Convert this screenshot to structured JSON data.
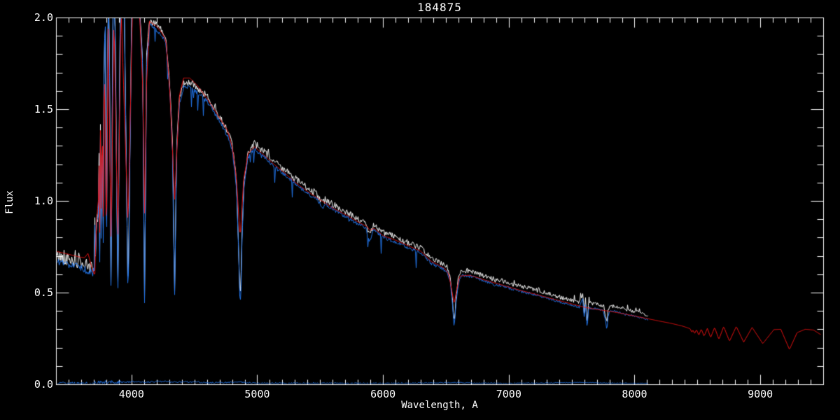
{
  "chart_data": {
    "type": "line",
    "title": "184875",
    "xlabel": "Wavelength, A",
    "ylabel": "Flux",
    "xlim": [
      3400,
      9500
    ],
    "ylim": [
      0,
      2
    ],
    "grid": false,
    "legend": "none",
    "background_color": "#000000",
    "axis_color": "#ffffff",
    "x_axis": {
      "major_ticks": [
        4000,
        5000,
        6000,
        7000,
        8000,
        9000
      ],
      "tick_labels": [
        "4000",
        "5000",
        "6000",
        "7000",
        "8000",
        "9000"
      ],
      "minor_step": 100
    },
    "y_axis": {
      "major_ticks": [
        0,
        0.5,
        1,
        1.5,
        2
      ],
      "tick_labels": [
        "0.0",
        "0.5",
        "1.0",
        "1.5",
        "2.0"
      ],
      "minor_step": 0.1
    },
    "series": [
      {
        "name": "observed-spectrum-white",
        "color": "#ffffff",
        "range": [
          3400,
          8100
        ],
        "anchors_ref": "observed",
        "offset": 0.027,
        "noise": 0.02,
        "style": "white"
      },
      {
        "name": "sky-zero-line-blue",
        "color": "#2277ee",
        "range": [
          3400,
          8100
        ],
        "anchors_ref": "sky",
        "offset": 0,
        "noise": 0.004,
        "style": "plain"
      },
      {
        "name": "observed-spectrum-blue",
        "color": "#2277ee",
        "range": [
          3400,
          8100
        ],
        "anchors_ref": "observed",
        "offset": 0,
        "noise": 0.012,
        "style": "blue"
      },
      {
        "name": "model-spectrum-red",
        "color": "#ee1111",
        "range": [
          3400,
          9475
        ],
        "anchors_ref": "model",
        "offset": 0,
        "noise": 0,
        "style": "plain"
      }
    ],
    "anchor_sets": {
      "observed": [
        [
          3400,
          0.67
        ],
        [
          3450,
          0.665
        ],
        [
          3500,
          0.655
        ],
        [
          3550,
          0.645
        ],
        [
          3600,
          0.635
        ],
        [
          3640,
          0.62
        ],
        [
          3665,
          0.61
        ],
        [
          3685,
          0.605
        ],
        [
          3698,
          0.615
        ],
        [
          3702,
          0.63
        ],
        [
          3706,
          0.88
        ],
        [
          3710,
          0.52
        ],
        [
          3715,
          1.02
        ],
        [
          3720,
          0.55
        ],
        [
          3726,
          1.22
        ],
        [
          3731,
          0.56
        ],
        [
          3738,
          1.42
        ],
        [
          3744,
          0.52
        ],
        [
          3752,
          1.58
        ],
        [
          3758,
          0.5
        ],
        [
          3765,
          1.72
        ],
        [
          3771,
          0.48
        ],
        [
          3780,
          1.85
        ],
        [
          3790,
          1.93
        ],
        [
          3798,
          0.46
        ],
        [
          3808,
          1.97
        ],
        [
          3820,
          2.02
        ],
        [
          3835,
          0.44
        ],
        [
          3850,
          2.03
        ],
        [
          3866,
          2.04
        ],
        [
          3889,
          0.43
        ],
        [
          3908,
          2.05
        ],
        [
          3940,
          2.05
        ],
        [
          3970,
          0.43
        ],
        [
          4000,
          2.05
        ],
        [
          4060,
          2.05
        ],
        [
          4086,
          1.75
        ],
        [
          4101,
          0.43
        ],
        [
          4118,
          1.75
        ],
        [
          4140,
          1.96
        ],
        [
          4200,
          1.93
        ],
        [
          4250,
          1.89
        ],
        [
          4272,
          1.85
        ],
        [
          4302,
          1.6
        ],
        [
          4324,
          1.28
        ],
        [
          4340,
          0.46
        ],
        [
          4357,
          1.28
        ],
        [
          4380,
          1.54
        ],
        [
          4412,
          1.62
        ],
        [
          4470,
          1.62
        ],
        [
          4540,
          1.58
        ],
        [
          4600,
          1.54
        ],
        [
          4650,
          1.49
        ],
        [
          4700,
          1.43
        ],
        [
          4760,
          1.36
        ],
        [
          4800,
          1.27
        ],
        [
          4832,
          1.08
        ],
        [
          4848,
          0.75
        ],
        [
          4861,
          0.4
        ],
        [
          4875,
          0.75
        ],
        [
          4892,
          1.08
        ],
        [
          4925,
          1.24
        ],
        [
          4975,
          1.28
        ],
        [
          5050,
          1.24
        ],
        [
          5130,
          1.19
        ],
        [
          5220,
          1.14
        ],
        [
          5300,
          1.095
        ],
        [
          5400,
          1.04
        ],
        [
          5480,
          1.005
        ],
        [
          5512,
          0.96
        ],
        [
          5540,
          0.985
        ],
        [
          5600,
          0.955
        ],
        [
          5700,
          0.915
        ],
        [
          5800,
          0.875
        ],
        [
          5860,
          0.855
        ],
        [
          5890,
          0.78
        ],
        [
          5920,
          0.845
        ],
        [
          6000,
          0.8
        ],
        [
          6100,
          0.775
        ],
        [
          6200,
          0.745
        ],
        [
          6300,
          0.715
        ],
        [
          6380,
          0.66
        ],
        [
          6440,
          0.64
        ],
        [
          6480,
          0.625
        ],
        [
          6510,
          0.61
        ],
        [
          6532,
          0.56
        ],
        [
          6549,
          0.44
        ],
        [
          6563,
          0.31
        ],
        [
          6578,
          0.44
        ],
        [
          6596,
          0.55
        ],
        [
          6618,
          0.595
        ],
        [
          6680,
          0.59
        ],
        [
          6733,
          0.58
        ],
        [
          6800,
          0.565
        ],
        [
          6860,
          0.55
        ],
        [
          6880,
          0.535
        ],
        [
          6900,
          0.545
        ],
        [
          7000,
          0.525
        ],
        [
          7100,
          0.505
        ],
        [
          7200,
          0.49
        ],
        [
          7300,
          0.47
        ],
        [
          7400,
          0.45
        ],
        [
          7500,
          0.43
        ],
        [
          7560,
          0.42
        ],
        [
          7585,
          0.47
        ],
        [
          7598,
          0.35
        ],
        [
          7608,
          0.44
        ],
        [
          7620,
          0.3
        ],
        [
          7632,
          0.42
        ],
        [
          7650,
          0.415
        ],
        [
          7700,
          0.41
        ],
        [
          7750,
          0.4
        ],
        [
          7770,
          0.33
        ],
        [
          7777,
          0.29
        ],
        [
          7786,
          0.37
        ],
        [
          7800,
          0.4
        ],
        [
          7860,
          0.395
        ],
        [
          7900,
          0.385
        ],
        [
          8000,
          0.37
        ],
        [
          8060,
          0.36
        ],
        [
          8100,
          0.35
        ]
      ],
      "model": [
        [
          3400,
          0.725
        ],
        [
          3460,
          0.715
        ],
        [
          3520,
          0.705
        ],
        [
          3580,
          0.695
        ],
        [
          3625,
          0.69
        ],
        [
          3652,
          0.715
        ],
        [
          3672,
          0.66
        ],
        [
          3695,
          0.61
        ],
        [
          3705,
          0.595
        ],
        [
          3710,
          0.63
        ],
        [
          3715,
          0.95
        ],
        [
          3720,
          0.7
        ],
        [
          3726,
          1.15
        ],
        [
          3731,
          0.75
        ],
        [
          3738,
          1.35
        ],
        [
          3744,
          0.72
        ],
        [
          3752,
          1.52
        ],
        [
          3758,
          0.72
        ],
        [
          3765,
          1.68
        ],
        [
          3771,
          0.7
        ],
        [
          3781,
          1.83
        ],
        [
          3798,
          0.74
        ],
        [
          3812,
          1.95
        ],
        [
          3835,
          0.76
        ],
        [
          3858,
          2.02
        ],
        [
          3889,
          0.78
        ],
        [
          3915,
          2.05
        ],
        [
          3970,
          0.86
        ],
        [
          4005,
          2.05
        ],
        [
          4060,
          2.05
        ],
        [
          4088,
          1.6
        ],
        [
          4101,
          0.92
        ],
        [
          4115,
          1.6
        ],
        [
          4140,
          1.98
        ],
        [
          4200,
          1.95
        ],
        [
          4245,
          1.91
        ],
        [
          4272,
          1.87
        ],
        [
          4302,
          1.6
        ],
        [
          4325,
          1.25
        ],
        [
          4340,
          1.0
        ],
        [
          4357,
          1.25
        ],
        [
          4380,
          1.58
        ],
        [
          4412,
          1.67
        ],
        [
          4460,
          1.67
        ],
        [
          4520,
          1.63
        ],
        [
          4580,
          1.575
        ],
        [
          4640,
          1.515
        ],
        [
          4700,
          1.45
        ],
        [
          4760,
          1.385
        ],
        [
          4800,
          1.29
        ],
        [
          4832,
          1.12
        ],
        [
          4861,
          0.8
        ],
        [
          4890,
          1.12
        ],
        [
          4925,
          1.26
        ],
        [
          4975,
          1.295
        ],
        [
          5050,
          1.25
        ],
        [
          5130,
          1.2
        ],
        [
          5220,
          1.15
        ],
        [
          5300,
          1.1
        ],
        [
          5400,
          1.05
        ],
        [
          5500,
          1.005
        ],
        [
          5600,
          0.96
        ],
        [
          5700,
          0.925
        ],
        [
          5800,
          0.885
        ],
        [
          5870,
          0.86
        ],
        [
          5893,
          0.84
        ],
        [
          5925,
          0.85
        ],
        [
          6000,
          0.81
        ],
        [
          6100,
          0.785
        ],
        [
          6200,
          0.755
        ],
        [
          6300,
          0.725
        ],
        [
          6380,
          0.67
        ],
        [
          6440,
          0.65
        ],
        [
          6490,
          0.63
        ],
        [
          6520,
          0.6
        ],
        [
          6542,
          0.52
        ],
        [
          6563,
          0.44
        ],
        [
          6584,
          0.52
        ],
        [
          6608,
          0.59
        ],
        [
          6680,
          0.595
        ],
        [
          6733,
          0.585
        ],
        [
          6800,
          0.57
        ],
        [
          6900,
          0.55
        ],
        [
          7000,
          0.53
        ],
        [
          7100,
          0.51
        ],
        [
          7200,
          0.493
        ],
        [
          7300,
          0.474
        ],
        [
          7400,
          0.456
        ],
        [
          7500,
          0.438
        ],
        [
          7600,
          0.42
        ],
        [
          7700,
          0.408
        ],
        [
          7800,
          0.398
        ],
        [
          7900,
          0.386
        ],
        [
          8000,
          0.372
        ],
        [
          8100,
          0.358
        ],
        [
          8200,
          0.344
        ],
        [
          8290,
          0.332
        ],
        [
          8380,
          0.317
        ],
        [
          8440,
          0.303
        ],
        [
          8452,
          0.283
        ],
        [
          8462,
          0.297
        ],
        [
          8474,
          0.276
        ],
        [
          8490,
          0.298
        ],
        [
          8508,
          0.268
        ],
        [
          8528,
          0.301
        ],
        [
          8550,
          0.262
        ],
        [
          8576,
          0.305
        ],
        [
          8602,
          0.255
        ],
        [
          8634,
          0.31
        ],
        [
          8668,
          0.245
        ],
        [
          8706,
          0.315
        ],
        [
          8752,
          0.235
        ],
        [
          8806,
          0.315
        ],
        [
          8865,
          0.23
        ],
        [
          8932,
          0.31
        ],
        [
          9017,
          0.222
        ],
        [
          9105,
          0.298
        ],
        [
          9160,
          0.3
        ],
        [
          9229,
          0.19
        ],
        [
          9290,
          0.282
        ],
        [
          9355,
          0.3
        ],
        [
          9420,
          0.296
        ],
        [
          9475,
          0.272
        ]
      ],
      "sky": [
        [
          3400,
          0.005
        ],
        [
          3700,
          0.006
        ],
        [
          3800,
          0.012
        ],
        [
          3900,
          0.01
        ],
        [
          4000,
          0.014
        ],
        [
          4100,
          0.012
        ],
        [
          4250,
          0.016
        ],
        [
          4350,
          0.012
        ],
        [
          4500,
          0.014
        ],
        [
          4600,
          0.008
        ],
        [
          4861,
          0.012
        ],
        [
          5000,
          0.006
        ],
        [
          5500,
          0.006
        ],
        [
          6000,
          0.005
        ],
        [
          6563,
          0.009
        ],
        [
          7000,
          0.005
        ],
        [
          7600,
          0.01
        ],
        [
          7800,
          0.006
        ],
        [
          8100,
          0.005
        ]
      ]
    }
  }
}
